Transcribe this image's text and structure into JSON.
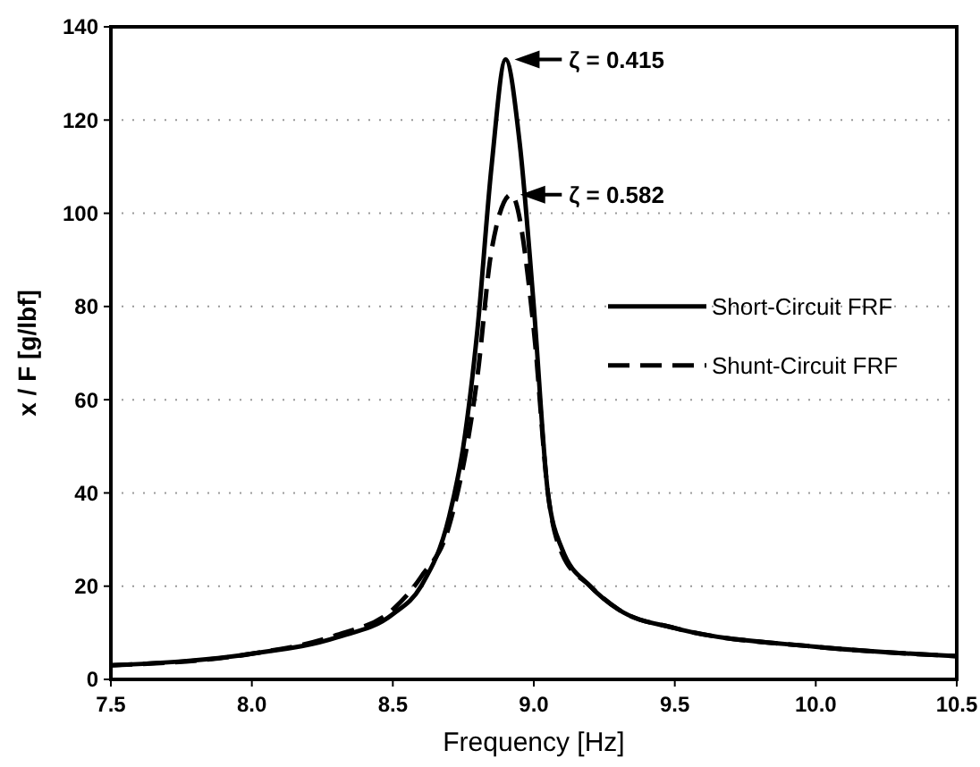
{
  "chart_data": {
    "type": "line",
    "xlabel": "Frequency  [Hz]",
    "ylabel": "x / F  [g/lbf]",
    "xlim": [
      7.5,
      10.5
    ],
    "xticks": [
      {
        "value": 7.5,
        "label": "7.5"
      },
      {
        "value": 8,
        "label": "8.0"
      },
      {
        "value": 8.5,
        "label": "8.5"
      },
      {
        "value": 9,
        "label": "9.0"
      },
      {
        "value": 9.5,
        "label": "9.5"
      },
      {
        "value": 10,
        "label": "10.0"
      },
      {
        "value": 10.5,
        "label": "10.5"
      }
    ],
    "ylim": [
      0,
      140
    ],
    "yticks": [
      0,
      20,
      40,
      60,
      80,
      100,
      120,
      140
    ],
    "grid": "y",
    "legend": "right",
    "series": [
      {
        "name": "Short-Circuit FRF",
        "color": "#000000",
        "line_style": "solid",
        "x": [
          7.5,
          8.0,
          8.3,
          8.5,
          8.6,
          8.7,
          8.75,
          8.8,
          8.85,
          8.9,
          8.95,
          9.0,
          9.05,
          9.1,
          9.2,
          9.3,
          9.5,
          10.0,
          10.5
        ],
        "values": [
          3,
          5.5,
          9,
          14,
          20,
          35,
          50,
          75,
          110,
          133,
          115,
          80,
          40,
          28,
          20,
          15,
          11,
          7,
          5
        ]
      },
      {
        "name": "Shunt-Circuit FRF",
        "color": "#000000",
        "line_style": "dashed",
        "x": [
          7.5,
          8.0,
          8.3,
          8.5,
          8.6,
          8.7,
          8.8,
          8.85,
          8.92,
          9.0,
          9.05,
          9.1,
          9.2,
          9.3,
          9.5,
          10.0,
          10.5
        ],
        "values": [
          3,
          5.5,
          9.5,
          15,
          22,
          33,
          65,
          92,
          104,
          75,
          40,
          27,
          20,
          15,
          11,
          7,
          5
        ]
      }
    ],
    "annotations": [
      {
        "text": "ζ = 0.415",
        "x": 8.9,
        "y": 133
      },
      {
        "text": "ζ = 0.582",
        "x": 8.92,
        "y": 104
      }
    ]
  }
}
